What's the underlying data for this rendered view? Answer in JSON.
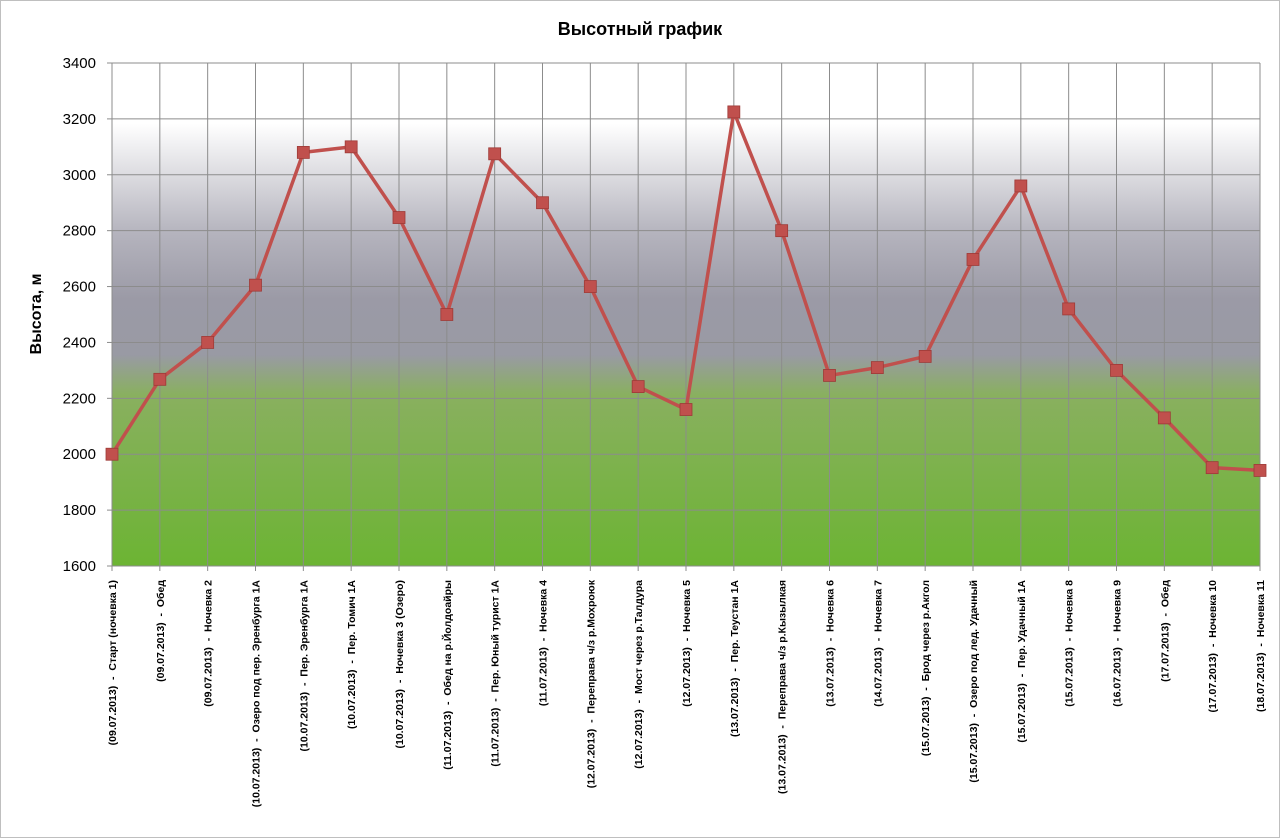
{
  "chart_data": {
    "type": "line",
    "title": "Высотный график",
    "ylabel": "Высота, м",
    "xlabel": "",
    "ylim": [
      1600,
      3400
    ],
    "yticks": [
      "1600",
      "1800",
      "2000",
      "2200",
      "2400",
      "2600",
      "2800",
      "3000",
      "3200",
      "3400"
    ],
    "grid": true,
    "legend": "none",
    "background": "vertical gradient: white (top) → grey → green (bottom)",
    "colors": {
      "line": "#c0504d",
      "marker": "#c0504d",
      "grid": "#8c8c8c",
      "green": "#6fb63a",
      "grey": "#9b9aa6"
    },
    "categories": [
      "(09.07.2013)  -  Старт (ночевка 1)",
      "(09.07.2013)  -  Обед",
      "(09.07.2013)  -  Ночевка 2",
      "(10.07.2013)  -  Озеро под пер. Эренбурга 1А",
      "(10.07.2013)  -  Пер. Эренбурга 1А",
      "(10.07.2013)  -  Пер. Томич 1А",
      "(10.07.2013)  -  Ночевка 3 (Озеро)",
      "(11.07.2013)  -  Обед на р.Йолдоайры",
      "(11.07.2013)  -  Пер. Юный турист 1А",
      "(11.07.2013)  -  Ночевка 4",
      "(12.07.2013)  -  Переправа ч/з р.Мохроюк",
      "(12.07.2013)  -  Мост через р.Талдура",
      "(12.07.2013)  -  Ночевка 5",
      "(13.07.2013)  -  Пер. Теустан 1А",
      "(13.07.2013)  -  Переправа ч/з р.Кызылкая",
      "(13.07.2013)  -  Ночевка 6",
      "(14.07.2013)  -  Ночевка 7",
      "(15.07.2013)  -  Брод через р.Акгол",
      "(15.07.2013)  -  Озеро под лед. Удачный",
      "(15.07.2013)  -  Пер. Удачный 1А",
      "(15.07.2013)  -  Ночевка 8",
      "(16.07.2013)  -  Ночевка 9",
      "(17.07.2013)  -  Обед",
      "(17.07.2013)  -  Ночевка 10",
      "(18.07.2013)  -  Ночевка 11"
    ],
    "series": [
      {
        "values": [
          2000,
          2268,
          2400,
          2605,
          3080,
          3100,
          2847,
          2500,
          3075,
          2900,
          2600,
          2242,
          2160,
          3225,
          2800,
          2282,
          2310,
          2350,
          2697,
          2960,
          2520,
          2300,
          2130,
          1952,
          1942
        ]
      }
    ]
  }
}
